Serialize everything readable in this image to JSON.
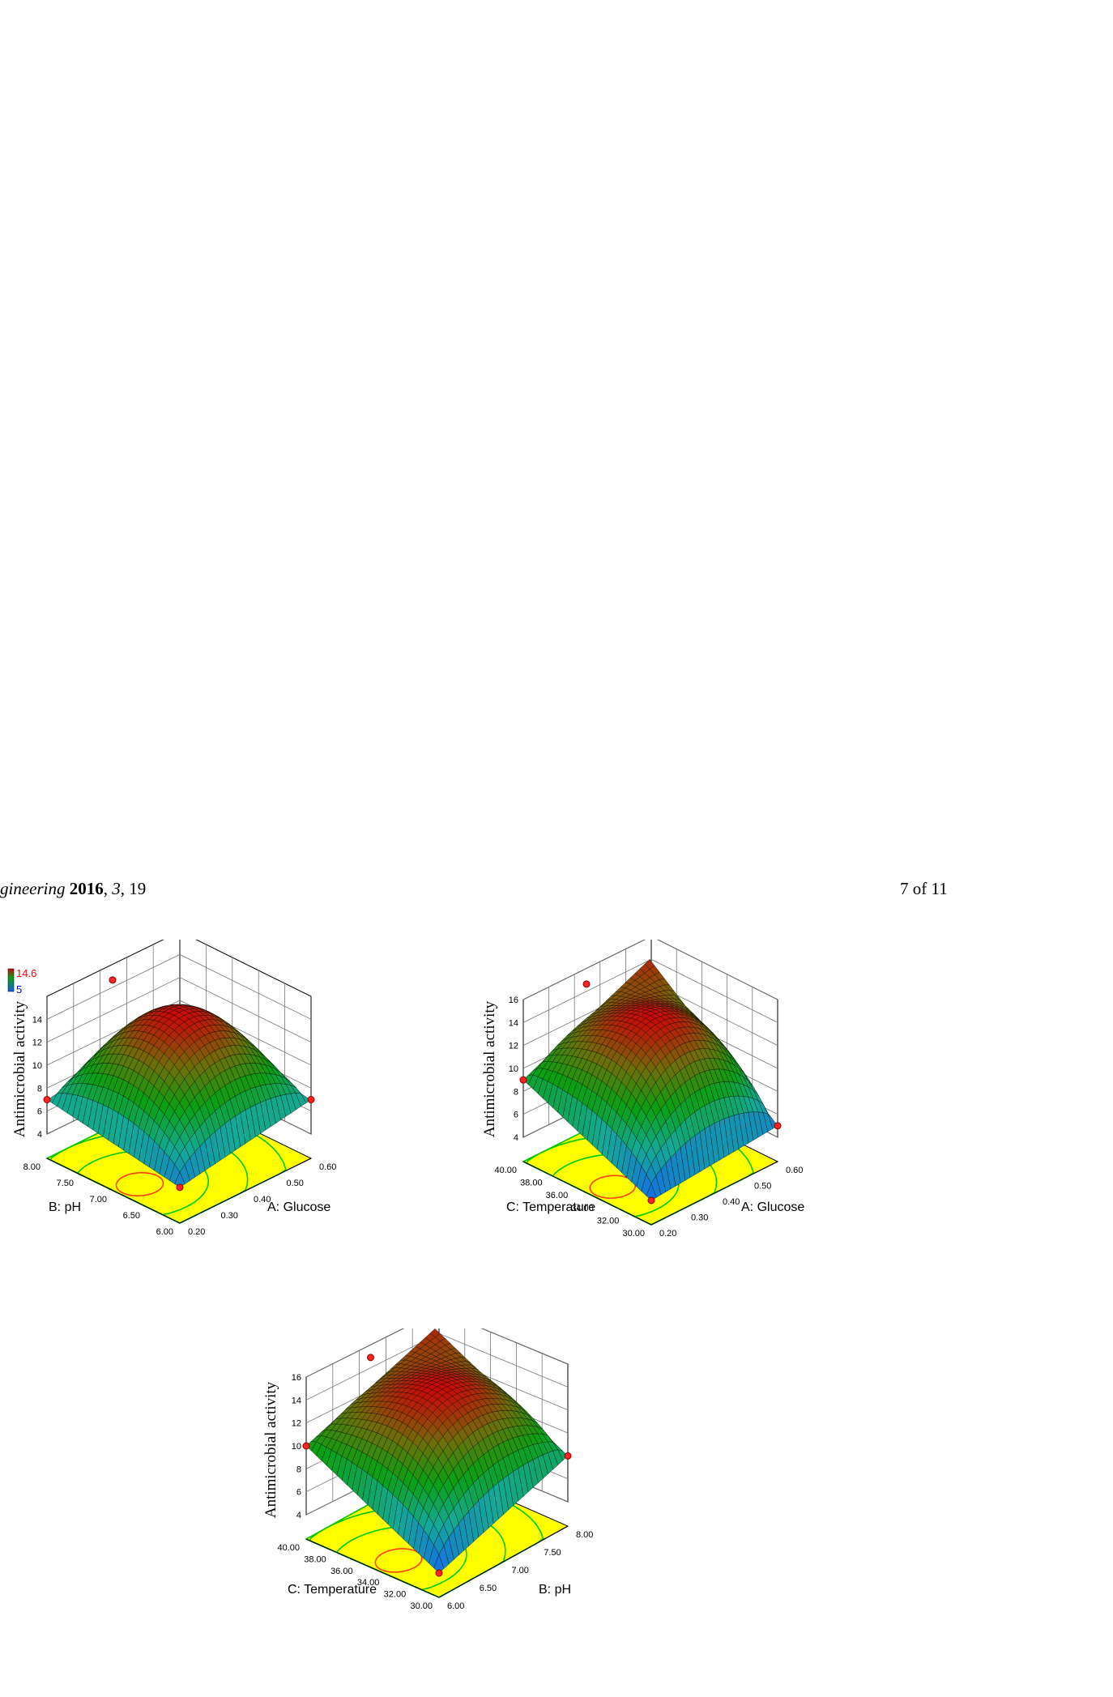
{
  "page_header": {
    "journal_fragment": "gineering",
    "year": "2016",
    "volume": "3",
    "article": "19",
    "page": "7 of 11"
  },
  "legend": {
    "max": "14.6",
    "min": "5",
    "max_color": "#ff0000",
    "min_color": "#0000ff"
  },
  "colors": {
    "floor": "#ffff00",
    "contour": "#00c800",
    "contour_inner": "#ff4000",
    "point": "#ff2020"
  },
  "chart_data": [
    {
      "type": "surface",
      "zlabel": "Antimicrobial activity",
      "x_axis": {
        "name": "A: Glucose",
        "ticks": [
          "0.20",
          "0.30",
          "0.40",
          "0.50",
          "0.60"
        ]
      },
      "y_axis": {
        "name": "B: pH",
        "ticks": [
          "6.00",
          "6.50",
          "7.00",
          "7.50",
          "8.00"
        ]
      },
      "z_ticks": [
        "4",
        "6",
        "8",
        "10",
        "12",
        "14"
      ],
      "zlim": [
        4,
        16
      ],
      "peak": 14.6,
      "corners": {
        "front": 5,
        "left": 7,
        "right": 7,
        "back": 7
      },
      "legend": true
    },
    {
      "type": "surface",
      "zlabel": "Antimicrobial activity",
      "x_axis": {
        "name": "A: Glucose",
        "ticks": [
          "0.20",
          "0.30",
          "0.40",
          "0.50",
          "0.60"
        ]
      },
      "y_axis": {
        "name": "C: Temperature",
        "ticks": [
          "30.00",
          "32.00",
          "34.00",
          "36.00",
          "38.00",
          "40.00"
        ]
      },
      "z_ticks": [
        "4",
        "6",
        "8",
        "10",
        "12",
        "14",
        "16"
      ],
      "zlim": [
        4,
        16
      ],
      "peak": 14.6,
      "corners": {
        "front": 4,
        "left": 9,
        "right": 5,
        "back": 14
      },
      "legend": false
    },
    {
      "type": "surface",
      "zlabel": "Antimicrobial activity",
      "x_axis": {
        "name": "B: pH",
        "ticks": [
          "6.00",
          "6.50",
          "7.00",
          "7.50",
          "8.00"
        ]
      },
      "y_axis": {
        "name": "C: Temperature",
        "ticks": [
          "30.00",
          "32.00",
          "34.00",
          "36.00",
          "38.00",
          "40.00"
        ]
      },
      "z_ticks": [
        "4",
        "6",
        "8",
        "10",
        "12",
        "14",
        "16"
      ],
      "zlim": [
        4,
        16
      ],
      "peak": 14.6,
      "corners": {
        "front": 4,
        "left": 10,
        "right": 8,
        "back": 14
      },
      "legend": false
    }
  ]
}
